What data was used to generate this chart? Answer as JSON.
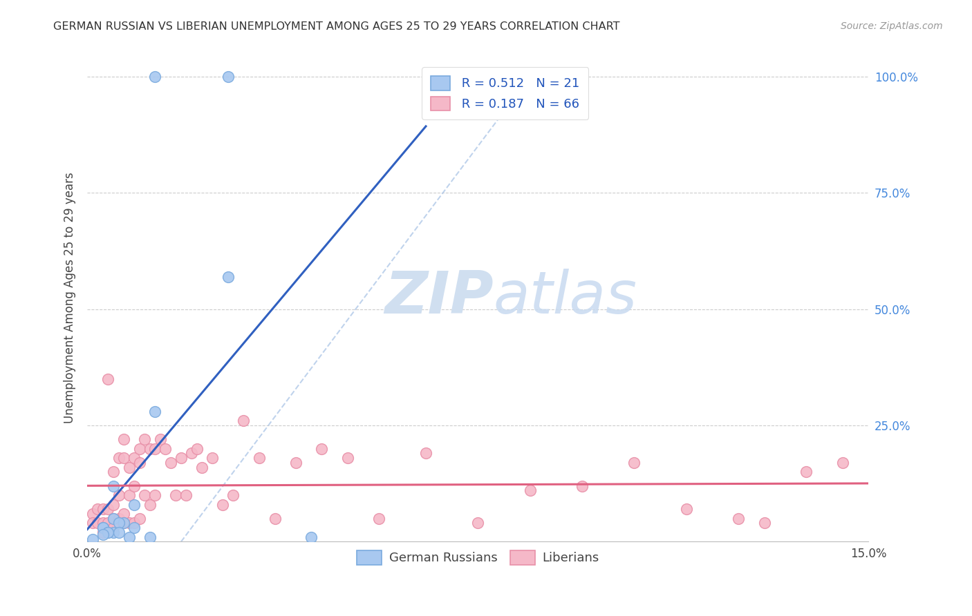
{
  "title": "GERMAN RUSSIAN VS LIBERIAN UNEMPLOYMENT AMONG AGES 25 TO 29 YEARS CORRELATION CHART",
  "source": "Source: ZipAtlas.com",
  "ylabel": "Unemployment Among Ages 25 to 29 years",
  "xlim": [
    0.0,
    0.15
  ],
  "ylim": [
    0.0,
    1.05
  ],
  "ytick_positions": [
    0.25,
    0.5,
    0.75,
    1.0
  ],
  "ytick_labels": [
    "25.0%",
    "50.0%",
    "75.0%",
    "100.0%"
  ],
  "xtick_positions": [
    0.0,
    0.15
  ],
  "xtick_labels": [
    "0.0%",
    "15.0%"
  ],
  "grid_color": "#cccccc",
  "background_color": "#ffffff",
  "watermark_zip": "ZIP",
  "watermark_atlas": "atlas",
  "legend_r1": "R = 0.512",
  "legend_n1": "N = 21",
  "legend_r2": "R = 0.187",
  "legend_n2": "N = 66",
  "blue_fill": "#a8c8f0",
  "blue_edge": "#7aaade",
  "pink_fill": "#f5b8c8",
  "pink_edge": "#e890a8",
  "blue_line_color": "#3060c0",
  "pink_line_color": "#e06080",
  "diag_color": "#b0c8e8",
  "german_russian_x": [
    0.013,
    0.027,
    0.027,
    0.013,
    0.005,
    0.009,
    0.005,
    0.007,
    0.006,
    0.003,
    0.003,
    0.009,
    0.005,
    0.004,
    0.004,
    0.006,
    0.003,
    0.008,
    0.012,
    0.043,
    0.001
  ],
  "german_russian_y": [
    1.0,
    1.0,
    0.57,
    0.28,
    0.12,
    0.08,
    0.05,
    0.04,
    0.04,
    0.03,
    0.03,
    0.03,
    0.02,
    0.02,
    0.02,
    0.02,
    0.015,
    0.01,
    0.01,
    0.01,
    0.005
  ],
  "liberian_x": [
    0.001,
    0.001,
    0.002,
    0.002,
    0.003,
    0.003,
    0.003,
    0.003,
    0.004,
    0.004,
    0.004,
    0.005,
    0.005,
    0.005,
    0.005,
    0.006,
    0.006,
    0.006,
    0.007,
    0.007,
    0.007,
    0.007,
    0.008,
    0.008,
    0.008,
    0.009,
    0.009,
    0.009,
    0.01,
    0.01,
    0.01,
    0.011,
    0.011,
    0.012,
    0.012,
    0.013,
    0.013,
    0.014,
    0.015,
    0.016,
    0.017,
    0.018,
    0.019,
    0.02,
    0.021,
    0.022,
    0.024,
    0.026,
    0.028,
    0.03,
    0.033,
    0.036,
    0.04,
    0.045,
    0.05,
    0.056,
    0.065,
    0.075,
    0.085,
    0.095,
    0.105,
    0.115,
    0.125,
    0.13,
    0.138,
    0.145
  ],
  "liberian_y": [
    0.06,
    0.04,
    0.07,
    0.04,
    0.07,
    0.04,
    0.03,
    0.02,
    0.35,
    0.07,
    0.04,
    0.15,
    0.08,
    0.05,
    0.03,
    0.18,
    0.1,
    0.05,
    0.22,
    0.18,
    0.06,
    0.04,
    0.16,
    0.1,
    0.04,
    0.18,
    0.12,
    0.04,
    0.2,
    0.17,
    0.05,
    0.22,
    0.1,
    0.2,
    0.08,
    0.2,
    0.1,
    0.22,
    0.2,
    0.17,
    0.1,
    0.18,
    0.1,
    0.19,
    0.2,
    0.16,
    0.18,
    0.08,
    0.1,
    0.26,
    0.18,
    0.05,
    0.17,
    0.2,
    0.18,
    0.05,
    0.19,
    0.04,
    0.11,
    0.12,
    0.17,
    0.07,
    0.05,
    0.04,
    0.15,
    0.17
  ]
}
